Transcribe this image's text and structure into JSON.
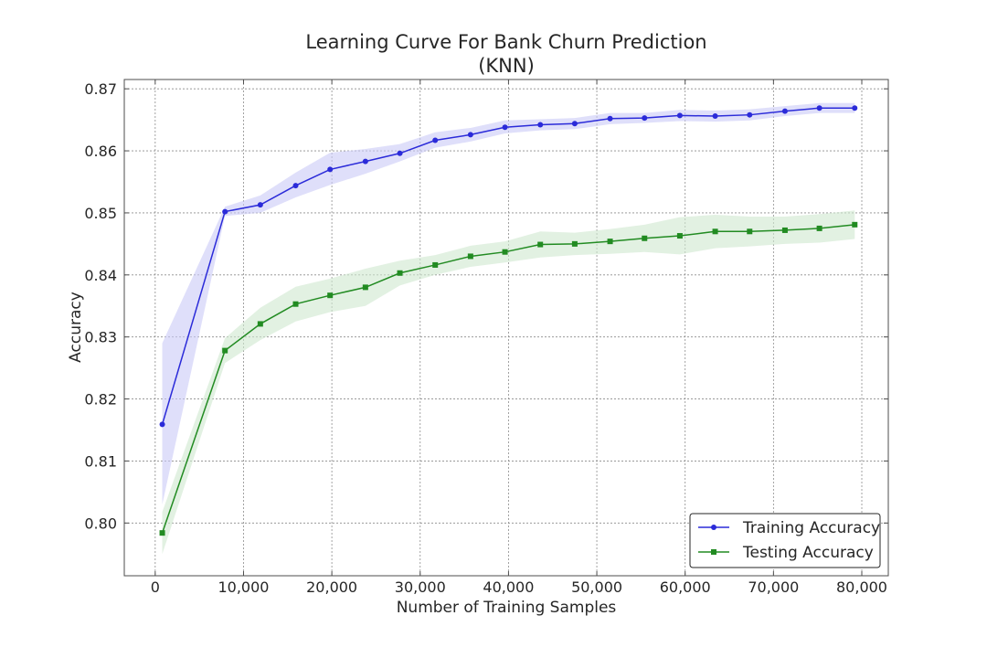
{
  "chart_data": {
    "type": "line",
    "title": "Learning Curve For Bank Churn Prediction",
    "subtitle": "(KNN)",
    "xlabel": "Number of Training Samples",
    "ylabel": "Accuracy",
    "xlim": [
      -3500,
      83000
    ],
    "ylim": [
      0.7915,
      0.8715
    ],
    "xticks": [
      0,
      10000,
      20000,
      30000,
      40000,
      50000,
      60000,
      70000,
      80000
    ],
    "xtick_labels": [
      "0",
      "10,000",
      "20,000",
      "30,000",
      "40,000",
      "50,000",
      "60,000",
      "70,000",
      "80,000"
    ],
    "yticks": [
      0.8,
      0.81,
      0.82,
      0.83,
      0.84,
      0.85,
      0.86,
      0.87
    ],
    "ytick_labels": [
      "0.80",
      "0.81",
      "0.82",
      "0.83",
      "0.84",
      "0.85",
      "0.86",
      "0.87"
    ],
    "grid": true,
    "legend_position": "bottom-right",
    "x": [
      800,
      7900,
      11900,
      15900,
      19800,
      23800,
      27700,
      31700,
      35700,
      39600,
      43600,
      47500,
      51500,
      55400,
      59400,
      63400,
      67300,
      71300,
      75200,
      79200
    ],
    "series": [
      {
        "name": "Training Accuracy",
        "color": "#2b2bd9",
        "fill_color": "#c9c9f7",
        "marker": "circle",
        "values": [
          0.8159,
          0.8502,
          0.8513,
          0.8544,
          0.857,
          0.8583,
          0.8596,
          0.8617,
          0.8626,
          0.8638,
          0.8642,
          0.8644,
          0.8652,
          0.8653,
          0.8657,
          0.8656,
          0.8658,
          0.8664,
          0.8669,
          0.8669
        ],
        "band_lower": [
          0.803,
          0.8495,
          0.85,
          0.8525,
          0.8545,
          0.8563,
          0.8583,
          0.8605,
          0.8615,
          0.8628,
          0.8633,
          0.8635,
          0.8643,
          0.8645,
          0.8648,
          0.8647,
          0.8649,
          0.8656,
          0.8661,
          0.8661
        ],
        "band_upper": [
          0.829,
          0.851,
          0.8528,
          0.8565,
          0.8597,
          0.8603,
          0.8611,
          0.863,
          0.8637,
          0.8649,
          0.8651,
          0.8653,
          0.8661,
          0.8661,
          0.8666,
          0.8665,
          0.8667,
          0.8672,
          0.8677,
          0.8677
        ]
      },
      {
        "name": "Testing Accuracy",
        "color": "#228b22",
        "fill_color": "#cfe8cf",
        "marker": "square",
        "values": [
          0.7984,
          0.8278,
          0.8321,
          0.8353,
          0.8367,
          0.838,
          0.8403,
          0.8416,
          0.843,
          0.8437,
          0.8449,
          0.845,
          0.8454,
          0.8459,
          0.8463,
          0.847,
          0.847,
          0.8472,
          0.8475,
          0.8481
        ],
        "band_lower": [
          0.795,
          0.8258,
          0.8295,
          0.8325,
          0.834,
          0.835,
          0.8383,
          0.84,
          0.8413,
          0.842,
          0.8428,
          0.8432,
          0.8434,
          0.8437,
          0.8433,
          0.8443,
          0.8446,
          0.845,
          0.8452,
          0.8458
        ],
        "band_upper": [
          0.8018,
          0.8298,
          0.8347,
          0.8381,
          0.8394,
          0.841,
          0.8423,
          0.8432,
          0.8447,
          0.8454,
          0.847,
          0.8468,
          0.8474,
          0.8481,
          0.8493,
          0.8497,
          0.8494,
          0.8494,
          0.8498,
          0.8504
        ]
      }
    ]
  }
}
